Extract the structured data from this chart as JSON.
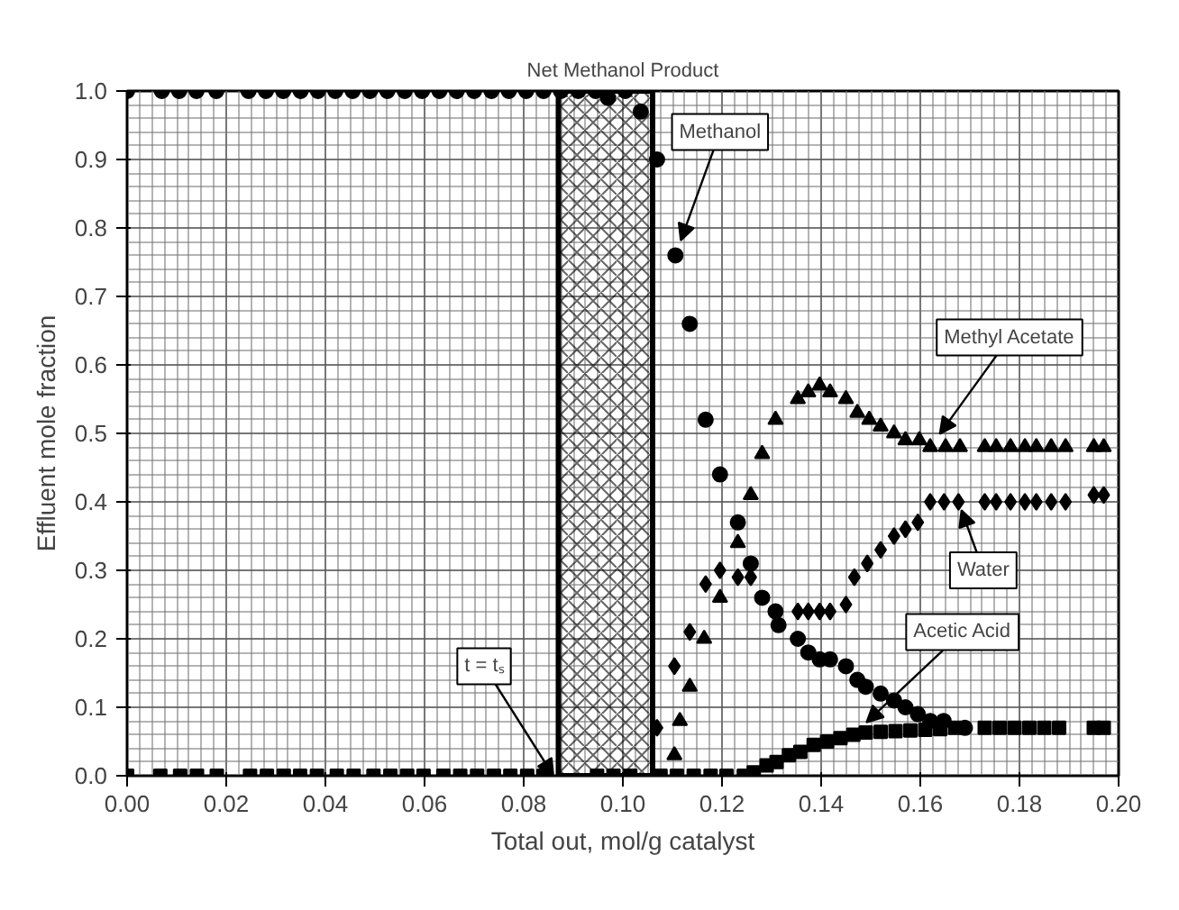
{
  "chart_data": {
    "type": "scatter",
    "xlabel": "Total out, mol/g catalyst",
    "ylabel": "Effluent mole fraction",
    "xlim": [
      0,
      0.2
    ],
    "ylim": [
      0,
      1.0
    ],
    "xticks": [
      {
        "value": 0,
        "label": "0.00"
      },
      {
        "value": 0.02,
        "label": "0.02"
      },
      {
        "value": 0.04,
        "label": "0.04"
      },
      {
        "value": 0.06,
        "label": "0.06"
      },
      {
        "value": 0.08,
        "label": "0.08"
      },
      {
        "value": 0.1,
        "label": "0.10"
      },
      {
        "value": 0.12,
        "label": "0.12"
      },
      {
        "value": 0.14,
        "label": "0.14"
      },
      {
        "value": 0.16,
        "label": "0.16"
      },
      {
        "value": 0.18,
        "label": "0.18"
      },
      {
        "value": 0.2,
        "label": "0.20"
      }
    ],
    "yticks": [
      {
        "value": 0,
        "label": "0.0"
      },
      {
        "value": 0.1,
        "label": "0.1"
      },
      {
        "value": 0.2,
        "label": "0.2"
      },
      {
        "value": 0.3,
        "label": "0.3"
      },
      {
        "value": 0.4,
        "label": "0.4"
      },
      {
        "value": 0.5,
        "label": "0.5"
      },
      {
        "value": 0.6,
        "label": "0.6"
      },
      {
        "value": 0.7,
        "label": "0.7"
      },
      {
        "value": 0.8,
        "label": "0.8"
      },
      {
        "value": 0.9,
        "label": "0.9"
      },
      {
        "value": 1.0,
        "label": "1.0"
      }
    ],
    "grid": true,
    "bands": [
      {
        "axis": "x",
        "from": 0.087,
        "to": 0.106,
        "label": "Net Methanol Product"
      }
    ],
    "annotations": [
      {
        "text": "t = tₛ",
        "x": 0.086,
        "y": 0
      }
    ],
    "series": [
      {
        "name": "Methanol",
        "color": "#000000",
        "marker": "circle",
        "x": [
          0,
          0.007,
          0.0105,
          0.014,
          0.018,
          0.0245,
          0.028,
          0.0315,
          0.035,
          0.0385,
          0.042,
          0.0455,
          0.049,
          0.0525,
          0.056,
          0.0595,
          0.063,
          0.0665,
          0.07,
          0.0735,
          0.077,
          0.0805,
          0.084,
          0.0875,
          0.091,
          0.0945,
          0.097,
          0.1005,
          0.1036,
          0.1069,
          0.1106,
          0.1135,
          0.1167,
          0.1196,
          0.1232,
          0.1258,
          0.1281,
          0.1308,
          0.1314,
          0.1353,
          0.1374,
          0.1397,
          0.1418,
          0.145,
          0.1473,
          0.149,
          0.152,
          0.1547,
          0.157,
          0.1595,
          0.162,
          0.1647,
          0.169
        ],
        "values": [
          1,
          1,
          1,
          1,
          1,
          1,
          1,
          1,
          1,
          1,
          1,
          1,
          1,
          1,
          1,
          1,
          1,
          1,
          1,
          1,
          1,
          1,
          1,
          1,
          1,
          1,
          0.99,
          1,
          0.97,
          0.9,
          0.76,
          0.66,
          0.52,
          0.44,
          0.37,
          0.31,
          0.26,
          0.24,
          0.22,
          0.2,
          0.18,
          0.17,
          0.17,
          0.16,
          0.14,
          0.13,
          0.12,
          0.11,
          0.1,
          0.09,
          0.08,
          0.08,
          0.07
        ]
      },
      {
        "name": "Methyl Acetate",
        "color": "#000000",
        "marker": "triangle",
        "x": [
          0.1104,
          0.1115,
          0.1135,
          0.1164,
          0.1196,
          0.1232,
          0.1258,
          0.1281,
          0.1308,
          0.1353,
          0.1374,
          0.1397,
          0.1418,
          0.145,
          0.1473,
          0.1497,
          0.152,
          0.1547,
          0.157,
          0.1598,
          0.162,
          0.1651,
          0.168,
          0.173,
          0.1753,
          0.1782,
          0.1811,
          0.1834,
          0.1864,
          0.1893,
          0.195,
          0.197
        ],
        "values": [
          0.03,
          0.08,
          0.13,
          0.2,
          0.26,
          0.34,
          0.41,
          0.47,
          0.52,
          0.55,
          0.56,
          0.57,
          0.56,
          0.55,
          0.53,
          0.52,
          0.51,
          0.5,
          0.49,
          0.49,
          0.48,
          0.48,
          0.48,
          0.48,
          0.48,
          0.48,
          0.48,
          0.48,
          0.48,
          0.48,
          0.48,
          0.48
        ]
      },
      {
        "name": "Water",
        "color": "#000000",
        "marker": "diamond",
        "x": [
          0.1069,
          0.1104,
          0.1135,
          0.1167,
          0.1196,
          0.1232,
          0.1258,
          0.1353,
          0.1374,
          0.1397,
          0.1418,
          0.145,
          0.1467,
          0.1493,
          0.152,
          0.1547,
          0.157,
          0.1595,
          0.162,
          0.1648,
          0.1677,
          0.173,
          0.1753,
          0.1782,
          0.1811,
          0.1834,
          0.1864,
          0.1893,
          0.195,
          0.197
        ],
        "values": [
          0.07,
          0.16,
          0.21,
          0.28,
          0.3,
          0.29,
          0.29,
          0.24,
          0.24,
          0.24,
          0.24,
          0.25,
          0.29,
          0.31,
          0.33,
          0.35,
          0.36,
          0.37,
          0.4,
          0.4,
          0.4,
          0.4,
          0.4,
          0.4,
          0.4,
          0.4,
          0.4,
          0.4,
          0.41,
          0.41
        ]
      },
      {
        "name": "Acetic Acid",
        "color": "#000000",
        "marker": "square",
        "x": [
          0,
          0.0067,
          0.0107,
          0.0141,
          0.0181,
          0.0248,
          0.0282,
          0.0316,
          0.0349,
          0.0383,
          0.0423,
          0.0457,
          0.0497,
          0.0531,
          0.0565,
          0.0598,
          0.0638,
          0.0672,
          0.0706,
          0.074,
          0.0773,
          0.0807,
          0.084,
          0.0948,
          0.0981,
          0.1015,
          0.1076,
          0.1109,
          0.1143,
          0.1177,
          0.1209,
          0.1244,
          0.1264,
          0.129,
          0.131,
          0.1335,
          0.1358,
          0.1385,
          0.1412,
          0.1439,
          0.1465,
          0.149,
          0.152,
          0.155,
          0.158,
          0.161,
          0.164,
          0.167,
          0.173,
          0.176,
          0.179,
          0.182,
          0.185,
          0.188,
          0.195,
          0.197
        ],
        "values": [
          0,
          0,
          0,
          0,
          0,
          0,
          0,
          0,
          0,
          0,
          0,
          0,
          0,
          0,
          0,
          0,
          0,
          0,
          0,
          0,
          0,
          0,
          0,
          0,
          0,
          0,
          0,
          0,
          0,
          0,
          0,
          0,
          0.005,
          0.015,
          0.02,
          0.03,
          0.035,
          0.045,
          0.05,
          0.055,
          0.06,
          0.063,
          0.064,
          0.065,
          0.066,
          0.067,
          0.068,
          0.07,
          0.07,
          0.07,
          0.07,
          0.07,
          0.07,
          0.07,
          0.07,
          0.07
        ]
      }
    ]
  }
}
